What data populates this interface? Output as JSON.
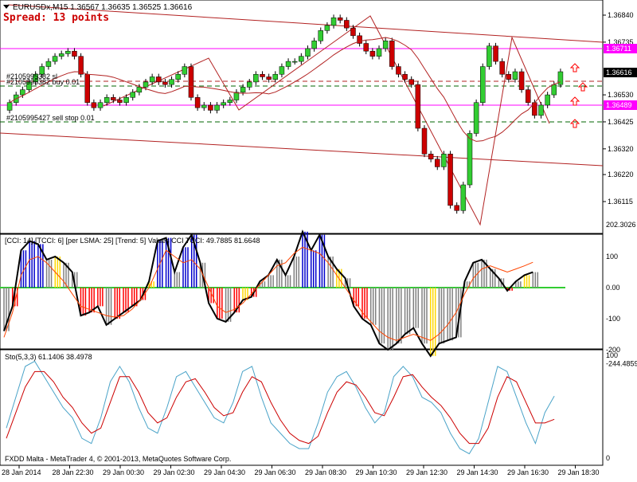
{
  "chart": {
    "symbol_header": "EURUSDx,M15  1.36567 1.36635 1.36525 1.36616",
    "spread": "Spread: 13 points",
    "orders": {
      "sl": "#2105995382 sl",
      "buy": "#2105995382 buy 0.01",
      "sell_stop": "#2105995427 sell stop 0.01"
    },
    "price_axis": [
      "1.36840",
      "1.36735",
      "1.36530",
      "1.36425",
      "1.36320",
      "1.36220",
      "1.36115"
    ],
    "price_tags": {
      "upper": "1.36711",
      "current": "1.36616",
      "lower": "1.36489"
    }
  },
  "cci_panel": {
    "header": "[CCI: 14] [TCCI: 6] [per LSMA: 25] [Trend: 5] Values CCI TCCI: 49.7885 81.6648",
    "axis": [
      "202.3026",
      "100",
      "0.00",
      "-100",
      "-200",
      "-244.4859"
    ]
  },
  "stoch_panel": {
    "header": "Sto(5,3,3) 61.1406 38.4978",
    "axis": [
      "100",
      "0"
    ]
  },
  "footer": {
    "copyright": "FXDD Malta - MetaTrader 4, © 2001-2013, MetaQuotes Software Corp.",
    "time_labels": [
      "28 Jan 2014",
      "28 Jan 22:30",
      "29 Jan 00:30",
      "29 Jan 02:30",
      "29 Jan 04:30",
      "29 Jan 06:30",
      "29 Jan 08:30",
      "29 Jan 10:30",
      "29 Jan 12:30",
      "29 Jan 14:30",
      "29 Jan 16:30",
      "29 Jan 18:30"
    ]
  },
  "colors": {
    "bull": "#32cd32",
    "bear": "#cc0000",
    "ma": "#b22222",
    "cci_blue": "#0000cc",
    "cci_gray": "#808080",
    "cci_red": "#ff0000",
    "cci_yellow": "#ffd700",
    "stoch_main": "#4aa3c8",
    "stoch_signal": "#cc0000",
    "tag_magenta": "#ff00ff"
  },
  "chart_data": {
    "type": "candlestick",
    "symbol": "EURUSDx",
    "timeframe": "M15",
    "close_prices": [
      1.365,
      1.3653,
      1.3655,
      1.3658,
      1.3661,
      1.3664,
      1.3666,
      1.3668,
      1.3669,
      1.367,
      1.3668,
      1.3661,
      1.365,
      1.3648,
      1.365,
      1.3652,
      1.3651,
      1.365,
      1.3652,
      1.3654,
      1.3656,
      1.3658,
      1.366,
      1.3658,
      1.3657,
      1.3659,
      1.3661,
      1.3664,
      1.3652,
      1.3648,
      1.3649,
      1.3647,
      1.3649,
      1.365,
      1.3651,
      1.3654,
      1.3656,
      1.3658,
      1.3661,
      1.366,
      1.3659,
      1.3661,
      1.3664,
      1.3666,
      1.3666,
      1.3668,
      1.3671,
      1.3674,
      1.3678,
      1.368,
      1.3683,
      1.3682,
      1.3679,
      1.3676,
      1.3673,
      1.367,
      1.3668,
      1.3671,
      1.3674,
      1.3664,
      1.3661,
      1.3659,
      1.3657,
      1.364,
      1.363,
      1.3628,
      1.3625,
      1.363,
      1.361,
      1.3608,
      1.3618,
      1.3638,
      1.365,
      1.3664,
      1.3672,
      1.3666,
      1.3661,
      1.3659,
      1.3662,
      1.3655,
      1.365,
      1.3645,
      1.3649,
      1.3653,
      1.3657,
      1.3662
    ],
    "cci": [
      -140,
      -60,
      120,
      150,
      140,
      90,
      100,
      80,
      50,
      -90,
      -80,
      -60,
      -120,
      -100,
      -80,
      -60,
      -40,
      20,
      150,
      160,
      50,
      130,
      170,
      80,
      -50,
      -100,
      -110,
      -80,
      -40,
      -30,
      20,
      40,
      90,
      40,
      100,
      180,
      120,
      170,
      100,
      60,
      30,
      -60,
      -100,
      -120,
      -180,
      -200,
      -180,
      -150,
      -130,
      -180,
      -220,
      -180,
      -170,
      -160,
      20,
      80,
      90,
      60,
      30,
      -10,
      20,
      40,
      49.79
    ],
    "tcci": [
      -160,
      -80,
      40,
      90,
      100,
      80,
      50,
      20,
      -20,
      -60,
      -70,
      -80,
      -90,
      -95,
      -90,
      -70,
      -40,
      0,
      60,
      120,
      100,
      80,
      90,
      60,
      0,
      -60,
      -80,
      -70,
      -50,
      -20,
      10,
      40,
      70,
      80,
      110,
      130,
      120,
      110,
      80,
      40,
      0,
      -40,
      -80,
      -110,
      -140,
      -160,
      -170,
      -160,
      -150,
      -160,
      -170,
      -150,
      -120,
      -80,
      -20,
      30,
      60,
      70,
      60,
      50,
      60,
      70,
      81.66
    ],
    "stoch_main": [
      30,
      60,
      90,
      95,
      80,
      65,
      50,
      40,
      20,
      15,
      40,
      75,
      90,
      75,
      50,
      30,
      25,
      50,
      80,
      85,
      70,
      55,
      40,
      35,
      55,
      85,
      90,
      60,
      35,
      25,
      15,
      10,
      10,
      35,
      65,
      80,
      85,
      70,
      50,
      35,
      45,
      80,
      90,
      80,
      60,
      55,
      45,
      25,
      10,
      5,
      20,
      55,
      90,
      85,
      60,
      35,
      15,
      45,
      61.14
    ],
    "stoch_signal": [
      20,
      45,
      70,
      85,
      85,
      75,
      60,
      50,
      35,
      25,
      30,
      55,
      80,
      80,
      65,
      45,
      35,
      40,
      60,
      75,
      78,
      65,
      50,
      42,
      45,
      65,
      80,
      75,
      55,
      38,
      25,
      18,
      15,
      22,
      45,
      65,
      75,
      72,
      60,
      45,
      42,
      60,
      80,
      82,
      70,
      60,
      52,
      40,
      25,
      15,
      15,
      30,
      60,
      80,
      75,
      55,
      35,
      35,
      38.5
    ]
  }
}
